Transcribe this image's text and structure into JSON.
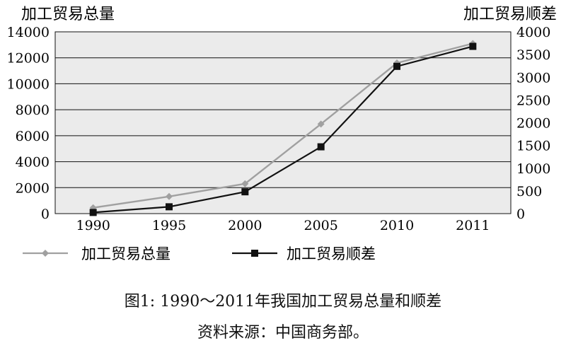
{
  "chart_data": {
    "type": "line",
    "title": "",
    "left_axis_label": "加工贸易总量",
    "right_axis_label": "加工贸易顺差",
    "categories": [
      "1990",
      "1995",
      "2000",
      "2005",
      "2010",
      "2011"
    ],
    "left_ylim": [
      0,
      14000
    ],
    "left_ticks": [
      "0",
      "2000",
      "4000",
      "6000",
      "8000",
      "10000",
      "12000",
      "14000"
    ],
    "right_ylim": [
      0,
      4000
    ],
    "right_ticks": [
      "0",
      "500",
      "1000",
      "1500",
      "2000",
      "2500",
      "3000",
      "3500",
      "4000"
    ],
    "grid": true,
    "legend_placement": "bottom",
    "series": [
      {
        "name": "加工贸易总量",
        "axis": "left",
        "color": "#a0a0a0",
        "marker": "diamond",
        "values": [
          450,
          1320,
          2300,
          6900,
          11600,
          13100
        ]
      },
      {
        "name": "加工贸易顺差",
        "axis": "right",
        "color": "#111111",
        "marker": "square",
        "values": [
          25,
          150,
          480,
          1470,
          3240,
          3680
        ]
      }
    ]
  },
  "captions": {
    "figure": "图1: 1990～2011年我国加工贸易总量和顺差",
    "source": "资料来源：中国商务部。"
  }
}
